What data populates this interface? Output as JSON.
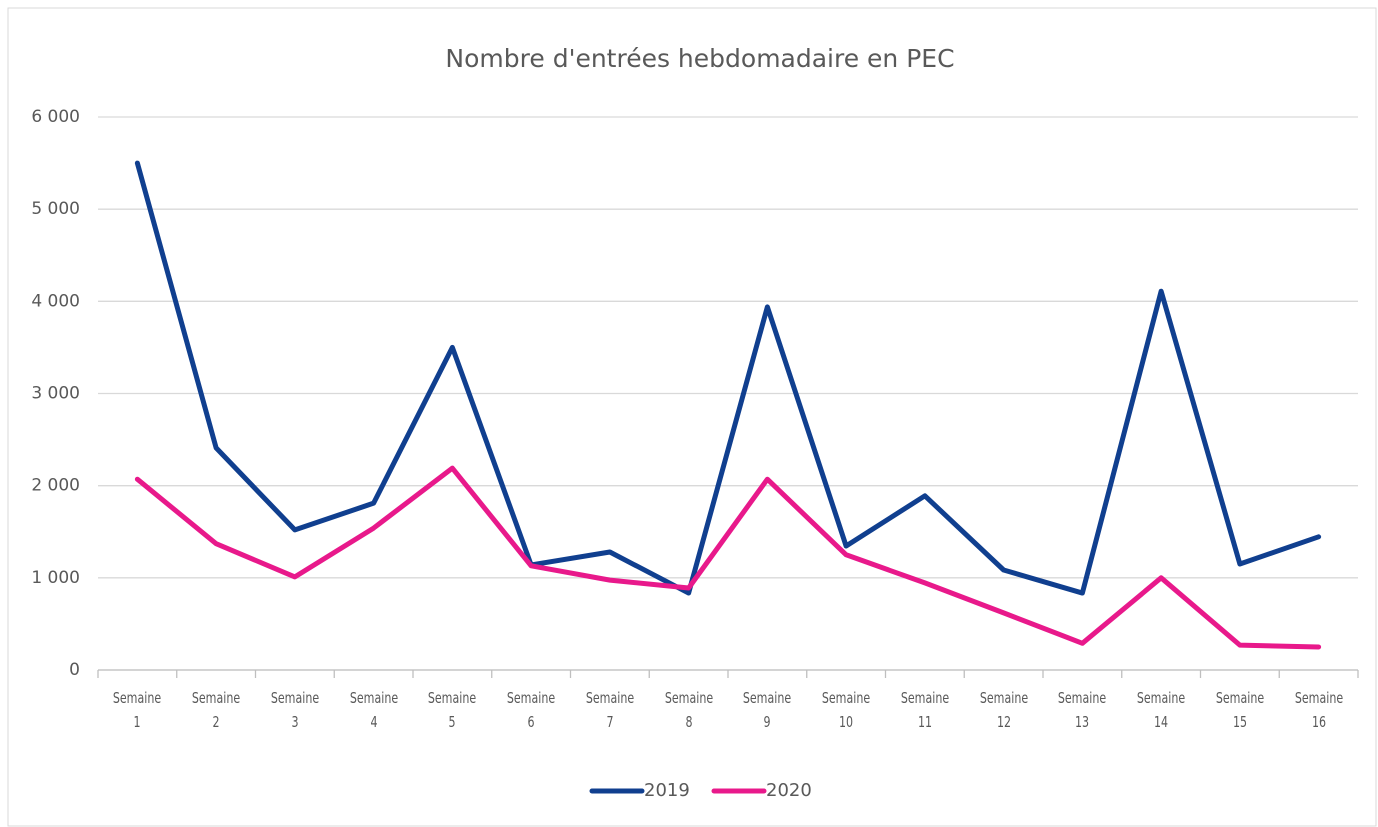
{
  "chart_data": {
    "type": "line",
    "title": "Nombre d'entrées hebdomadaire  en PEC",
    "categories": [
      "Semaine 1",
      "Semaine 2",
      "Semaine 3",
      "Semaine 4",
      "Semaine 5",
      "Semaine 6",
      "Semaine 7",
      "Semaine 8",
      "Semaine 9",
      "Semaine 10",
      "Semaine 11",
      "Semaine 12",
      "Semaine 13",
      "Semaine 14",
      "Semaine 15",
      "Semaine 16"
    ],
    "series": [
      {
        "name": "2019",
        "color": "#103f8f",
        "values": [
          5500,
          2410,
          1520,
          1810,
          3500,
          1140,
          1280,
          835,
          3940,
          1345,
          1890,
          1085,
          835,
          4110,
          1150,
          1445
        ]
      },
      {
        "name": "2020",
        "color": "#e8198b",
        "values": [
          2070,
          1370,
          1010,
          1540,
          2190,
          1130,
          975,
          890,
          2070,
          1250,
          945,
          620,
          290,
          1000,
          270,
          250
        ]
      }
    ],
    "ylim": [
      0,
      6000
    ],
    "yticks": [
      0,
      {
        "value": 1000,
        "label": "1 000"
      },
      {
        "value": 2000,
        "label": "2 000"
      },
      {
        "value": 3000,
        "label": "3 000"
      },
      {
        "value": 4000,
        "label": "4 000"
      },
      {
        "value": 5000,
        "label": "5 000"
      },
      {
        "value": 6000,
        "label": "6 000"
      }
    ],
    "grid": true,
    "legend": "bottom"
  }
}
